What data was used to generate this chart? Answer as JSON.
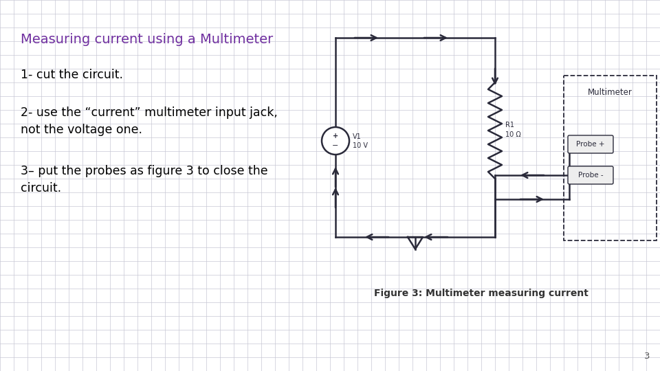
{
  "bg_color": "#ffffff",
  "grid_color": "#c8c8d4",
  "title": "Measuring current using a Multimeter",
  "title_color": "#7030a0",
  "title_fontsize": 14,
  "body_lines": [
    "1- cut the circuit.",
    "2- use the “current” multimeter input jack,\nnot the voltage one.",
    "3– put the probes as figure 3 to close the\ncircuit."
  ],
  "body_fontsize": 12.5,
  "body_color": "#000000",
  "figure_caption": "Figure 3: Multimeter measuring current",
  "figure_caption_fontsize": 10,
  "page_number": "3",
  "cc": "#2a2a3a"
}
